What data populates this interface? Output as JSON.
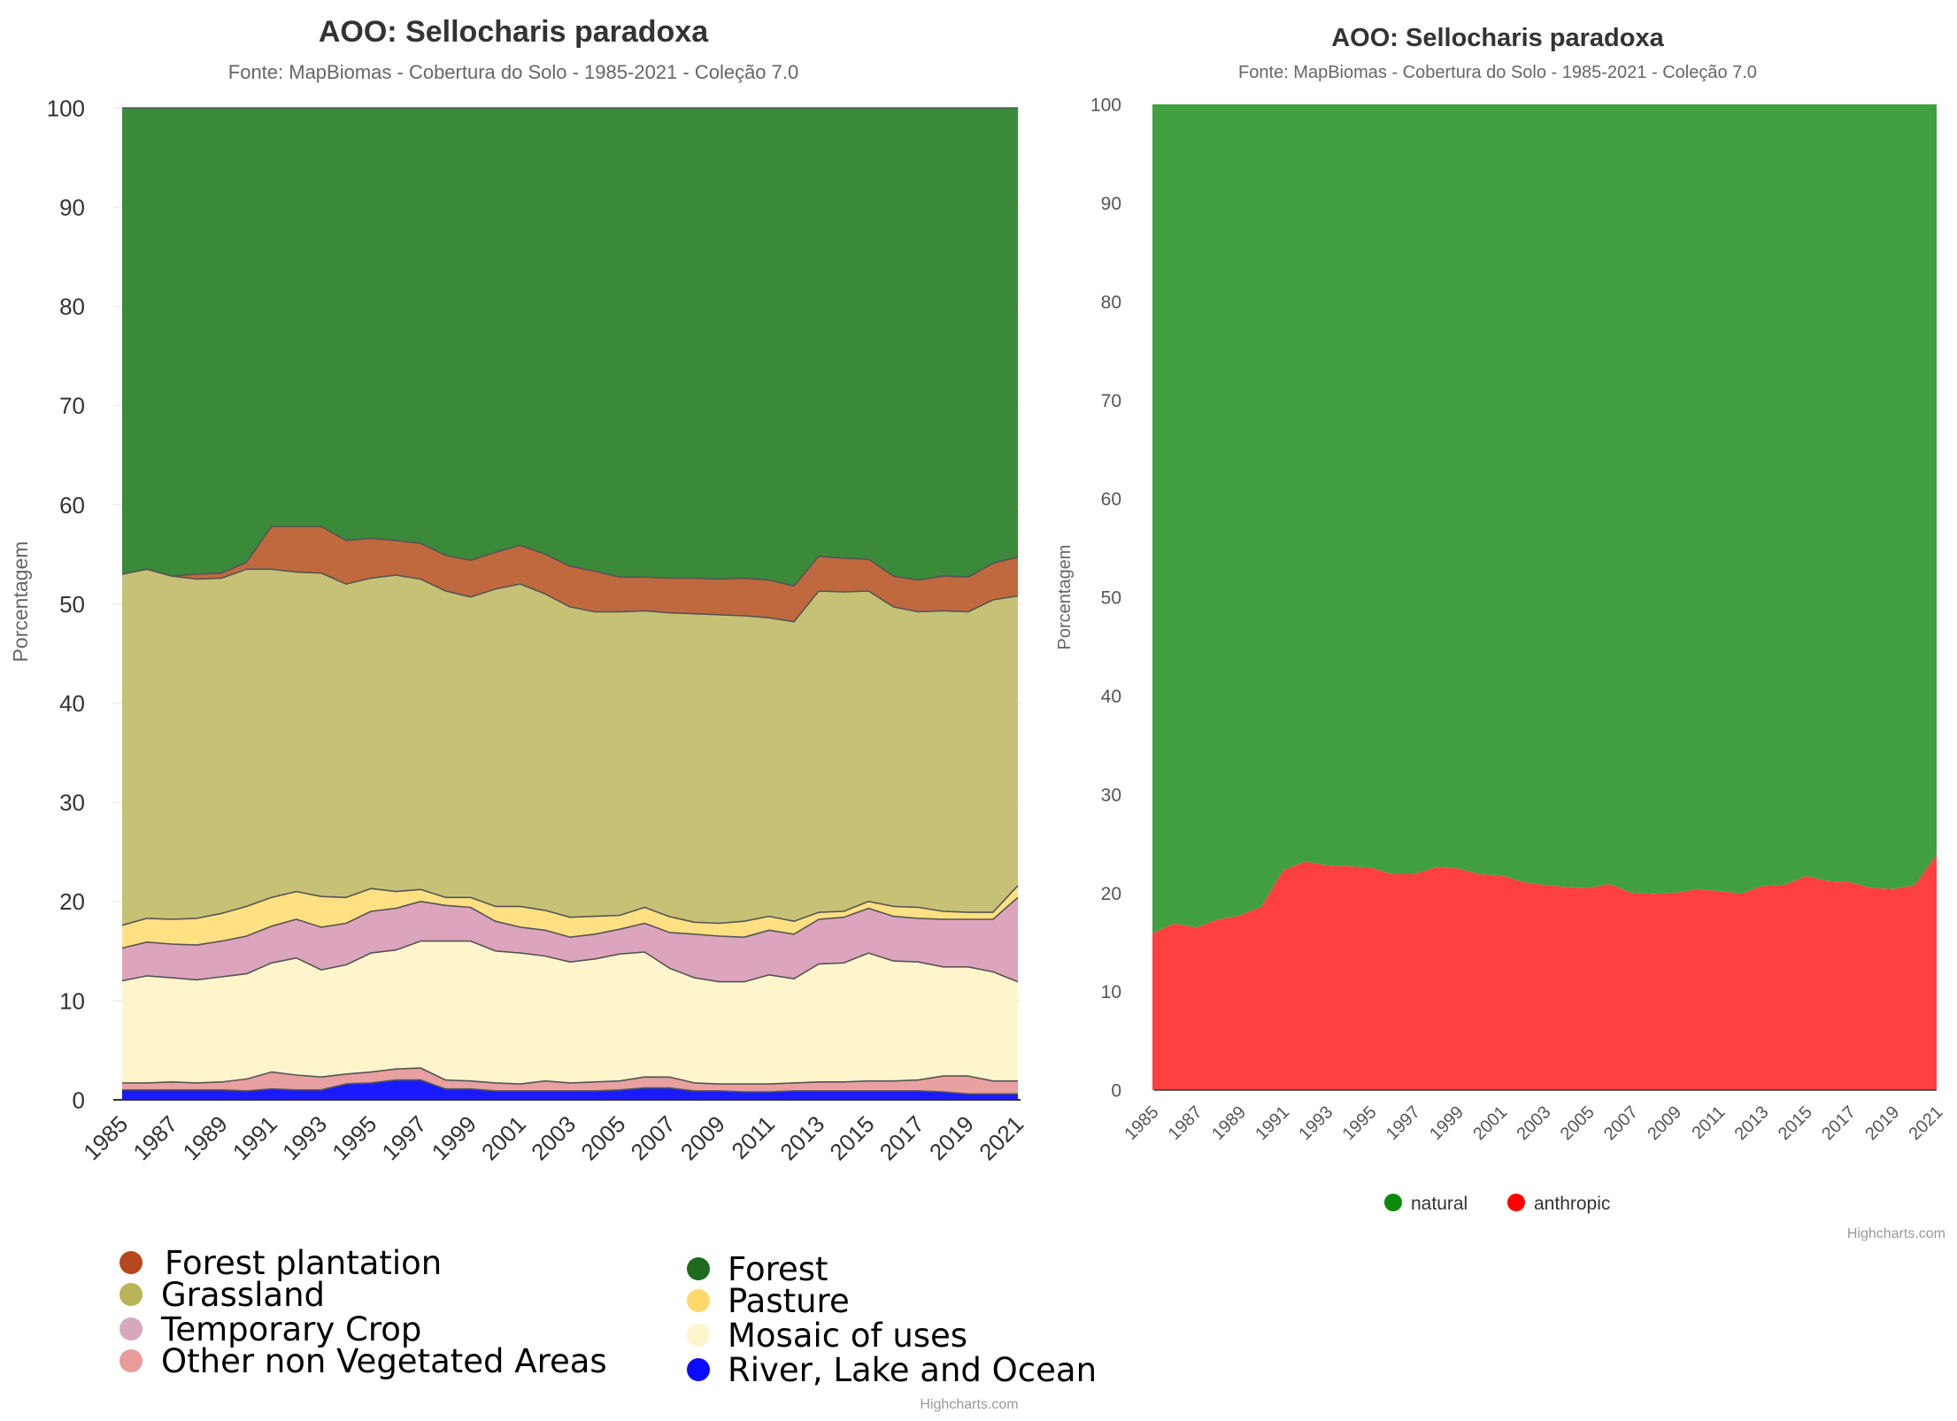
{
  "chart_data": [
    {
      "type": "area",
      "stacking": "percent",
      "title": "AOO: Sellocharis paradoxa",
      "subtitle": "Fonte: MapBiomas - Cobertura do Solo - 1985-2021 - Coleção 7.0",
      "ylabel": "Porcentagem",
      "ylim": [
        0,
        100
      ],
      "yticks": [
        0,
        10,
        20,
        30,
        40,
        50,
        60,
        70,
        80,
        90,
        100
      ],
      "x": [
        1985,
        1986,
        1987,
        1988,
        1989,
        1990,
        1991,
        1992,
        1993,
        1994,
        1995,
        1996,
        1997,
        1998,
        1999,
        2000,
        2001,
        2002,
        2003,
        2004,
        2005,
        2006,
        2007,
        2008,
        2009,
        2010,
        2011,
        2012,
        2013,
        2014,
        2015,
        2016,
        2017,
        2018,
        2019,
        2020,
        2021
      ],
      "xtick_labels": [
        "1985",
        "1987",
        "1989",
        "1991",
        "1993",
        "1995",
        "1997",
        "1999",
        "2001",
        "2003",
        "2005",
        "2007",
        "2009",
        "2011",
        "2013",
        "2015",
        "2017",
        "2019",
        "2021"
      ],
      "grid": true,
      "series": [
        {
          "name": "River, Lake and Ocean",
          "color": "#1a1aff",
          "values": [
            1.0,
            1.0,
            1.0,
            1.0,
            1.0,
            0.9,
            1.1,
            1.0,
            1.0,
            1.6,
            1.7,
            2.0,
            2.0,
            1.1,
            1.1,
            0.9,
            0.9,
            0.9,
            0.9,
            0.9,
            1.0,
            1.2,
            1.2,
            0.9,
            0.9,
            0.8,
            0.8,
            0.9,
            0.9,
            0.9,
            0.9,
            0.9,
            0.9,
            0.8,
            0.6,
            0.6,
            0.6
          ]
        },
        {
          "name": "Other non Vegetated Areas",
          "color": "#e8a0a0",
          "values": [
            0.7,
            0.7,
            0.8,
            0.7,
            0.8,
            1.2,
            1.7,
            1.5,
            1.3,
            1.0,
            1.1,
            1.1,
            1.2,
            0.9,
            0.8,
            0.8,
            0.7,
            1.0,
            0.8,
            0.9,
            0.9,
            1.1,
            1.1,
            0.8,
            0.7,
            0.8,
            0.8,
            0.8,
            0.9,
            0.9,
            1.0,
            1.0,
            1.1,
            1.6,
            1.8,
            1.3,
            1.3
          ]
        },
        {
          "name": "Mosaic of uses",
          "color": "#fff5cc",
          "values": [
            10.3,
            10.8,
            10.5,
            10.4,
            10.6,
            10.6,
            11.0,
            11.8,
            10.8,
            11.0,
            12.0,
            12.0,
            12.8,
            14.0,
            14.1,
            13.3,
            13.2,
            12.6,
            12.2,
            12.4,
            12.8,
            12.6,
            11.0,
            10.6,
            10.3,
            10.3,
            11.0,
            10.5,
            11.9,
            12.0,
            12.9,
            12.1,
            11.9,
            11.0,
            11.0,
            11.0,
            10.0
          ]
        },
        {
          "name": "Temporary Crop",
          "color": "#dda4be",
          "values": [
            3.3,
            3.4,
            3.4,
            3.5,
            3.6,
            3.8,
            3.7,
            3.9,
            4.3,
            4.2,
            4.2,
            4.2,
            4.0,
            3.6,
            3.4,
            3.0,
            2.6,
            2.6,
            2.5,
            2.5,
            2.5,
            2.9,
            3.6,
            4.4,
            4.6,
            4.5,
            4.5,
            4.5,
            4.5,
            4.6,
            4.5,
            4.5,
            4.4,
            4.8,
            4.8,
            5.3,
            8.5
          ]
        },
        {
          "name": "Pasture",
          "color": "#ffe082",
          "values": [
            2.3,
            2.4,
            2.5,
            2.7,
            2.8,
            3.0,
            2.9,
            2.8,
            3.1,
            2.6,
            2.3,
            1.7,
            1.2,
            0.8,
            1.0,
            1.5,
            2.1,
            2.0,
            2.0,
            1.8,
            1.4,
            1.6,
            1.6,
            1.2,
            1.3,
            1.6,
            1.4,
            1.3,
            0.7,
            0.6,
            0.7,
            1.0,
            1.1,
            0.8,
            0.7,
            0.7,
            1.2
          ]
        },
        {
          "name": "Grassland",
          "color": "#c6c175",
          "values": [
            35.4,
            35.2,
            34.6,
            34.2,
            33.8,
            34.0,
            33.1,
            32.2,
            32.6,
            31.6,
            31.3,
            31.9,
            31.3,
            30.9,
            30.3,
            32.0,
            32.5,
            31.9,
            31.3,
            30.7,
            30.6,
            29.9,
            30.7,
            31.1,
            31.1,
            30.8,
            30.1,
            30.2,
            32.4,
            32.2,
            31.3,
            30.2,
            29.8,
            30.3,
            30.3,
            31.5,
            29.2
          ]
        },
        {
          "name": "Forest plantation",
          "color": "#c0693e",
          "values": [
            0.0,
            0.0,
            0.0,
            0.5,
            0.5,
            0.7,
            4.3,
            4.6,
            4.7,
            4.4,
            4.0,
            3.5,
            3.6,
            3.6,
            3.7,
            3.7,
            3.9,
            4.0,
            4.1,
            4.1,
            3.5,
            3.4,
            3.5,
            3.6,
            3.6,
            3.8,
            3.8,
            3.6,
            3.5,
            3.4,
            3.2,
            3.1,
            3.2,
            3.5,
            3.5,
            3.7,
            3.9
          ]
        },
        {
          "name": "Forest",
          "color": "#3a8a3a",
          "values": [
            47.0,
            46.5,
            47.2,
            47.0,
            46.9,
            45.8,
            42.2,
            42.2,
            42.2,
            43.6,
            43.4,
            43.6,
            43.9,
            45.1,
            45.6,
            44.8,
            44.1,
            45.0,
            46.2,
            46.7,
            47.3,
            47.3,
            47.5,
            47.4,
            47.5,
            47.4,
            47.6,
            48.2,
            45.2,
            45.4,
            45.5,
            47.2,
            47.6,
            47.2,
            47.3,
            45.9,
            45.3
          ]
        }
      ],
      "legend": {
        "placement": "bottom",
        "items": [
          {
            "name": "Forest plantation",
            "color": "#b7471c"
          },
          {
            "name": "Grassland",
            "color": "#b9b455"
          },
          {
            "name": "Temporary Crop",
            "color": "#d6a7bd"
          },
          {
            "name": "Other non Vegetated Areas",
            "color": "#ea9a9a"
          },
          {
            "name": "Forest",
            "color": "#1d6a1d"
          },
          {
            "name": "Pasture",
            "color": "#ffd86a"
          },
          {
            "name": "Mosaic of uses",
            "color": "#fff5cc"
          },
          {
            "name": "River, Lake and Ocean",
            "color": "#0a0aff"
          }
        ]
      },
      "credits": "Highcharts.com"
    },
    {
      "type": "area",
      "stacking": "percent",
      "title": "AOO: Sellocharis paradoxa",
      "subtitle": "Fonte: MapBiomas - Cobertura do Solo - 1985-2021 - Coleção 7.0",
      "ylabel": "Porcentagem",
      "ylim": [
        0,
        100
      ],
      "yticks": [
        0,
        10,
        20,
        30,
        40,
        50,
        60,
        70,
        80,
        90,
        100
      ],
      "x": [
        1985,
        1986,
        1987,
        1988,
        1989,
        1990,
        1991,
        1992,
        1993,
        1994,
        1995,
        1996,
        1997,
        1998,
        1999,
        2000,
        2001,
        2002,
        2003,
        2004,
        2005,
        2006,
        2007,
        2008,
        2009,
        2010,
        2011,
        2012,
        2013,
        2014,
        2015,
        2016,
        2017,
        2018,
        2019,
        2020,
        2021
      ],
      "xtick_labels": [
        "1985",
        "1987",
        "1989",
        "1991",
        "1993",
        "1995",
        "1997",
        "1999",
        "2001",
        "2003",
        "2005",
        "2007",
        "2009",
        "2011",
        "2013",
        "2015",
        "2017",
        "2019",
        "2021"
      ],
      "grid": true,
      "series": [
        {
          "name": "anthropic",
          "color": "#ff4040",
          "values": [
            15.9,
            16.9,
            16.5,
            17.3,
            17.7,
            18.6,
            22.3,
            23.2,
            22.8,
            22.7,
            22.6,
            21.9,
            21.9,
            22.6,
            22.5,
            21.9,
            21.8,
            21.1,
            20.8,
            20.6,
            20.5,
            20.9,
            20.0,
            19.9,
            20.0,
            20.4,
            20.2,
            19.9,
            20.7,
            20.8,
            21.7,
            21.2,
            21.1,
            20.5,
            20.4,
            20.8,
            23.9
          ]
        },
        {
          "name": "natural",
          "color": "#40a040",
          "values": [
            84.1,
            83.1,
            83.5,
            82.7,
            82.3,
            81.4,
            77.7,
            76.8,
            77.2,
            77.3,
            77.4,
            78.1,
            78.1,
            77.4,
            77.5,
            78.1,
            78.2,
            78.9,
            79.2,
            79.4,
            79.5,
            79.1,
            80.0,
            80.1,
            80.0,
            79.6,
            79.8,
            80.1,
            79.3,
            79.2,
            78.3,
            78.8,
            78.9,
            79.5,
            79.6,
            79.2,
            76.1
          ]
        }
      ],
      "legend": {
        "placement": "bottom",
        "items": [
          {
            "name": "natural",
            "color": "#0a8a0a"
          },
          {
            "name": "anthropic",
            "color": "#ff0000"
          }
        ]
      },
      "credits": "Highcharts.com"
    }
  ]
}
